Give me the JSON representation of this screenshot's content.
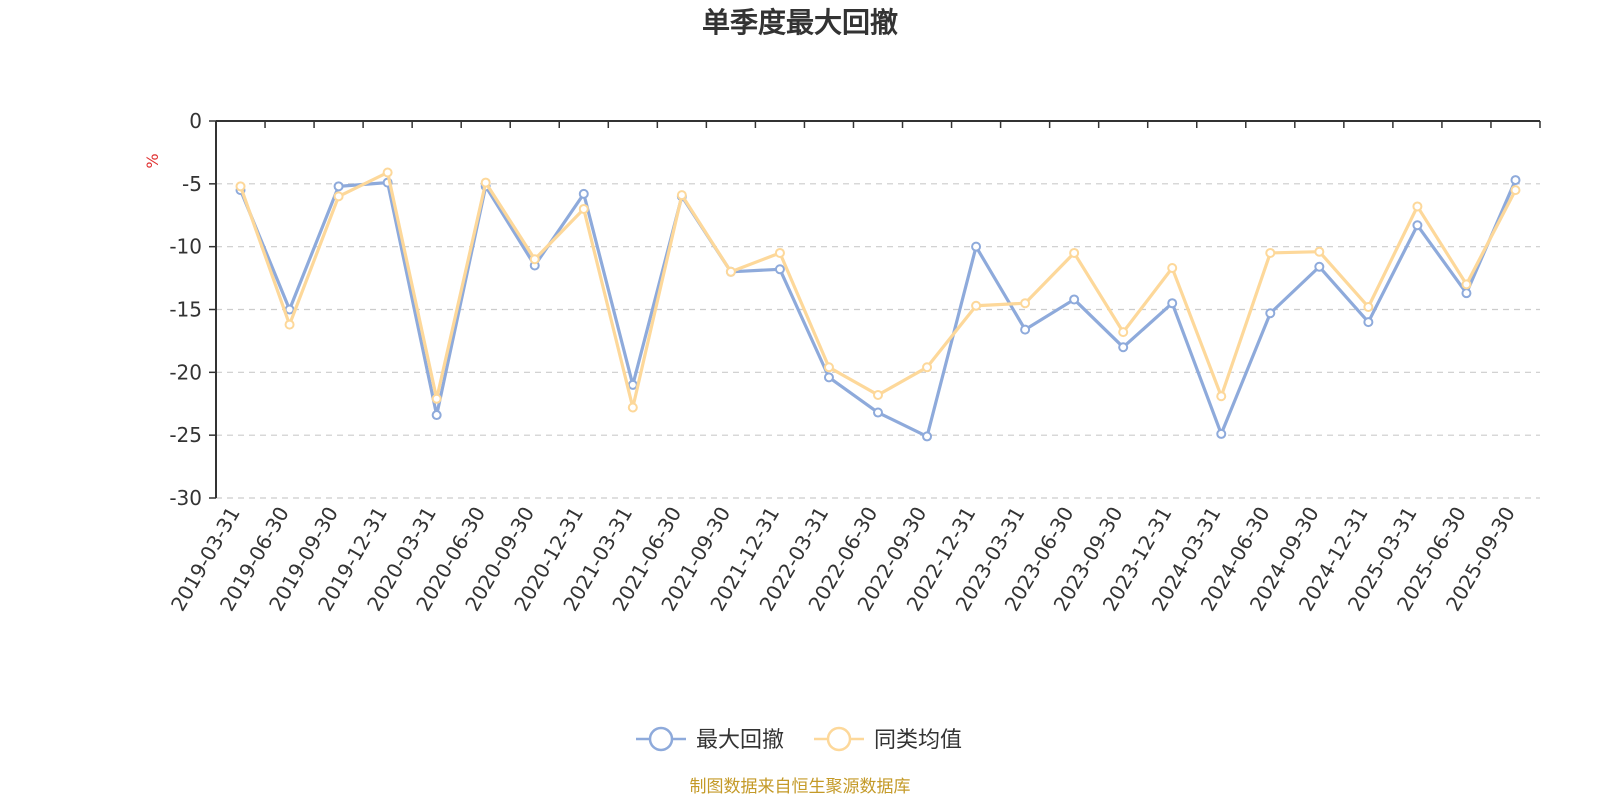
{
  "chart_data": {
    "type": "line",
    "title": "单季度最大回撤",
    "ylabel": "%",
    "xlabel": "",
    "ylim": [
      -30,
      0
    ],
    "yticks": [
      0,
      -5,
      -10,
      -15,
      -20,
      -25,
      -30
    ],
    "grid": true,
    "legend_position": "bottom",
    "categories": [
      "2019-03-31",
      "2019-06-30",
      "2019-09-30",
      "2019-12-31",
      "2020-03-31",
      "2020-06-30",
      "2020-09-30",
      "2020-12-31",
      "2021-03-31",
      "2021-06-30",
      "2021-09-30",
      "2021-12-31",
      "2022-03-31",
      "2022-06-30",
      "2022-09-30",
      "2022-12-31",
      "2023-03-31",
      "2023-06-30",
      "2023-09-30",
      "2023-12-31",
      "2024-03-31",
      "2024-06-30",
      "2024-09-30",
      "2024-12-31",
      "2025-03-31",
      "2025-06-30",
      "2025-09-30"
    ],
    "series": [
      {
        "name": "最大回撤",
        "color": "#8eaadb",
        "values": [
          -5.5,
          -15.0,
          -5.2,
          -4.9,
          -23.4,
          -5.2,
          -11.5,
          -5.8,
          -21.0,
          -6.0,
          -12.0,
          -11.8,
          -20.4,
          -23.2,
          -25.1,
          -10.0,
          -16.6,
          -14.2,
          -18.0,
          -14.5,
          -24.9,
          -15.3,
          -11.6,
          -16.0,
          -8.3,
          -13.7,
          -4.7
        ]
      },
      {
        "name": "同类均值",
        "color": "#fdd89a",
        "values": [
          -5.2,
          -16.2,
          -6.0,
          -4.1,
          -22.1,
          -4.9,
          -11.0,
          -7.0,
          -22.8,
          -5.9,
          -12.0,
          -10.5,
          -19.6,
          -21.8,
          -19.6,
          -14.7,
          -14.5,
          -10.5,
          -16.8,
          -11.7,
          -21.9,
          -10.5,
          -10.4,
          -14.8,
          -6.8,
          -13.0,
          -5.5
        ]
      }
    ]
  },
  "source_text": "制图数据来自恒生聚源数据库"
}
